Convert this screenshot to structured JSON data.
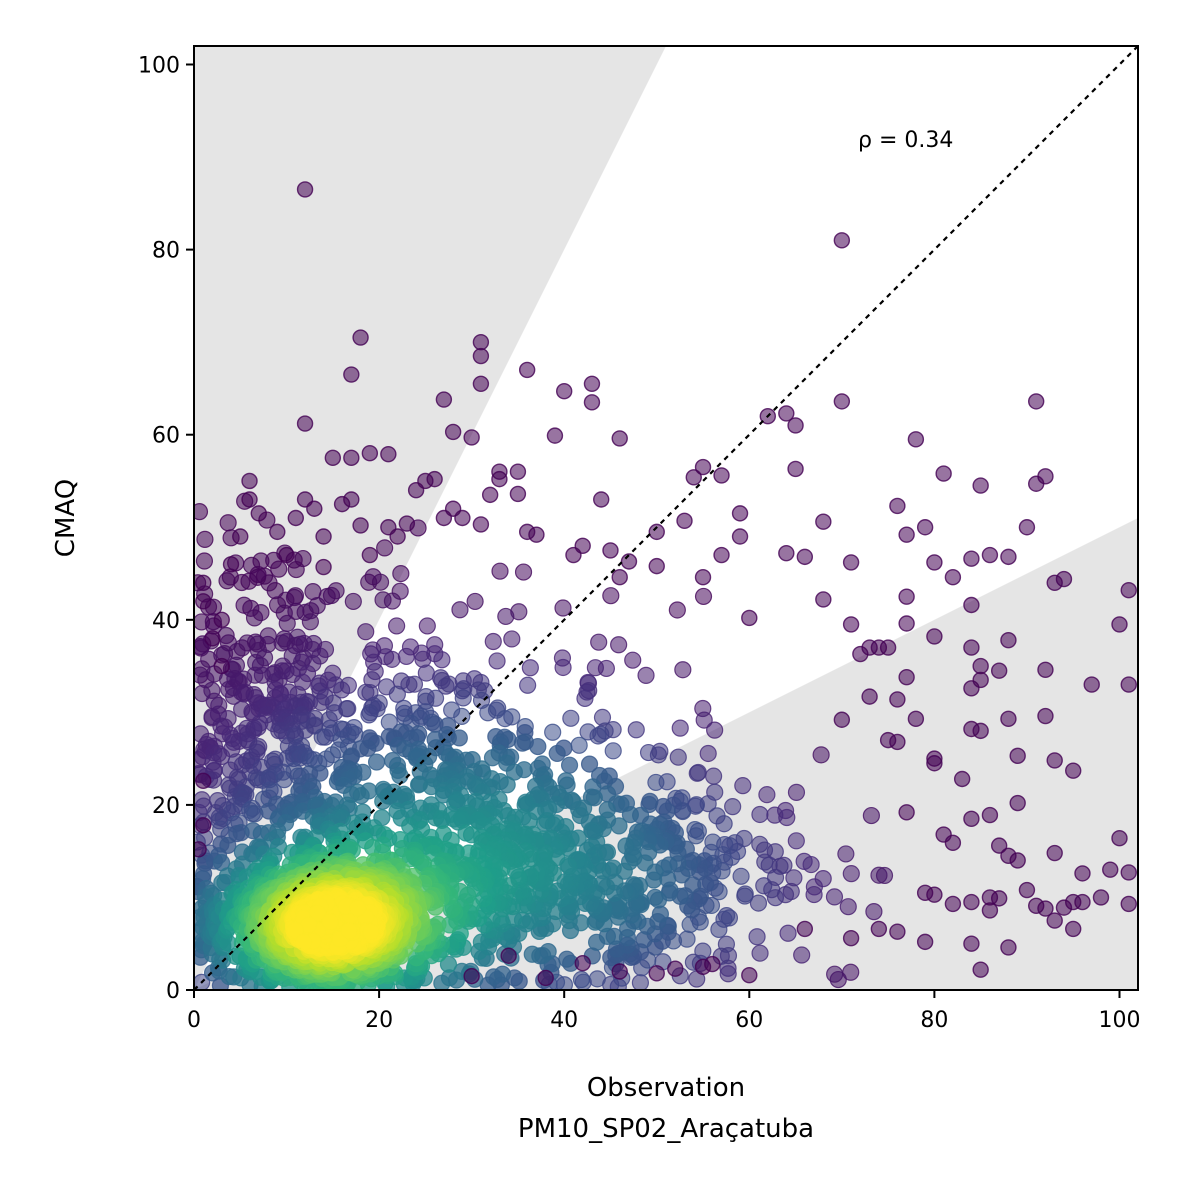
{
  "chart_data": {
    "type": "scatter",
    "title": "",
    "xlabel": "Observation",
    "xlabel_sub": "PM10_SP02_Araçatuba",
    "ylabel": "CMAQ",
    "xlim": [
      0,
      102
    ],
    "ylim": [
      0,
      102
    ],
    "xticks": [
      0,
      20,
      40,
      60,
      80,
      100
    ],
    "yticks": [
      0,
      20,
      40,
      60,
      80,
      100
    ],
    "grid": false,
    "annotation": "ρ = 0.34",
    "identity_line": true,
    "shaded_regions": [
      {
        "name": "upper",
        "bounds_slope": [
          2,
          null
        ]
      },
      {
        "name": "lower",
        "bounds_slope": [
          0,
          0.5
        ]
      }
    ],
    "colors": {
      "low_density": "#440154",
      "high_density": "#fde725",
      "shade": "#e5e5e5"
    },
    "outlier_points": [
      [
        12,
        86.5
      ],
      [
        70,
        81
      ],
      [
        18,
        70.5
      ],
      [
        31,
        70
      ],
      [
        31,
        68.5
      ],
      [
        17,
        66.5
      ],
      [
        36,
        67
      ],
      [
        31,
        65.5
      ],
      [
        43,
        65.5
      ],
      [
        40,
        64.7
      ],
      [
        27,
        63.8
      ],
      [
        43,
        63.5
      ],
      [
        70,
        63.6
      ],
      [
        91,
        63.6
      ],
      [
        62,
        62
      ],
      [
        64,
        62.3
      ],
      [
        12,
        61.2
      ],
      [
        28,
        60.3
      ],
      [
        30,
        59.7
      ],
      [
        46,
        59.6
      ],
      [
        39,
        59.9
      ],
      [
        78,
        59.5
      ],
      [
        65,
        61
      ],
      [
        19,
        58
      ],
      [
        15,
        57.5
      ],
      [
        17,
        57.5
      ],
      [
        21,
        57.9
      ],
      [
        33,
        56
      ],
      [
        35,
        56
      ],
      [
        57,
        55.6
      ],
      [
        55,
        56.5
      ],
      [
        65,
        56.3
      ],
      [
        76,
        52.3
      ],
      [
        81,
        55.8
      ],
      [
        92,
        55.5
      ],
      [
        85,
        54.5
      ],
      [
        91,
        54.7
      ],
      [
        44,
        53
      ],
      [
        54,
        55.4
      ],
      [
        68,
        50.6
      ],
      [
        79,
        50
      ],
      [
        90,
        50
      ],
      [
        50,
        49.5
      ],
      [
        77,
        49.2
      ],
      [
        71,
        46.2
      ],
      [
        80,
        46.2
      ],
      [
        84,
        46.6
      ],
      [
        86,
        47
      ],
      [
        88,
        46.8
      ],
      [
        93,
        44
      ],
      [
        94,
        44.4
      ],
      [
        68,
        42.2
      ],
      [
        77,
        42.5
      ],
      [
        82,
        44.6
      ],
      [
        84,
        41.6
      ],
      [
        60,
        40.2
      ],
      [
        71,
        39.5
      ],
      [
        77,
        39.6
      ],
      [
        80,
        38.2
      ],
      [
        88,
        37.8
      ],
      [
        73,
        37
      ],
      [
        74,
        37
      ],
      [
        75,
        37
      ],
      [
        72,
        36.3
      ],
      [
        84,
        37
      ],
      [
        85,
        35
      ],
      [
        87,
        34.5
      ],
      [
        92,
        34.6
      ],
      [
        77,
        33.8
      ],
      [
        97,
        33
      ],
      [
        101,
        33
      ],
      [
        100,
        39.5
      ],
      [
        101,
        43.2
      ],
      [
        73,
        31.7
      ],
      [
        76,
        31.4
      ],
      [
        84,
        32.6
      ],
      [
        85,
        33.5
      ],
      [
        88,
        29.3
      ],
      [
        92,
        29.6
      ],
      [
        70,
        29.2
      ],
      [
        78,
        29.3
      ],
      [
        75,
        27
      ],
      [
        76,
        26.8
      ],
      [
        84,
        28.2
      ],
      [
        85,
        28
      ],
      [
        89,
        25.3
      ],
      [
        93,
        24.8
      ],
      [
        95,
        23.7
      ],
      [
        80,
        25
      ],
      [
        80,
        24.5
      ],
      [
        83,
        22.8
      ],
      [
        89,
        20.2
      ],
      [
        100,
        16.4
      ],
      [
        77,
        19.2
      ],
      [
        84,
        18.5
      ],
      [
        86,
        18.9
      ],
      [
        81,
        16.8
      ],
      [
        82,
        15.9
      ],
      [
        87,
        15.6
      ],
      [
        88,
        14.5
      ],
      [
        89,
        14
      ],
      [
        93,
        14.8
      ],
      [
        96,
        12.6
      ],
      [
        99,
        13
      ],
      [
        101,
        12.7
      ],
      [
        95,
        9.5
      ],
      [
        98,
        10
      ],
      [
        101,
        9.3
      ],
      [
        96,
        9.5
      ],
      [
        94,
        8.9
      ],
      [
        92,
        8.8
      ],
      [
        91,
        9.1
      ],
      [
        84,
        9.5
      ],
      [
        86,
        10
      ],
      [
        87,
        9.9
      ],
      [
        80,
        10.3
      ],
      [
        82,
        9.3
      ],
      [
        79,
        10.5
      ],
      [
        90,
        10.8
      ],
      [
        95,
        6.6
      ],
      [
        93,
        7.5
      ],
      [
        85,
        2.2
      ],
      [
        79,
        5.2
      ],
      [
        84,
        5
      ],
      [
        86,
        8.6
      ],
      [
        88,
        4.6
      ],
      [
        60,
        1.6
      ],
      [
        55,
        2.5
      ],
      [
        46,
        2
      ],
      [
        42,
        2.9
      ],
      [
        38,
        1.3
      ],
      [
        34,
        3.7
      ],
      [
        50,
        1.8
      ],
      [
        52,
        2.3
      ],
      [
        56,
        2.8
      ],
      [
        66,
        6.6
      ],
      [
        74,
        6.6
      ],
      [
        71,
        5.6
      ],
      [
        76,
        6.3
      ],
      [
        30,
        1.5
      ],
      [
        1,
        44
      ],
      [
        1,
        42
      ],
      [
        2,
        38
      ],
      [
        3,
        40
      ],
      [
        1,
        22.6
      ],
      [
        1,
        17.8
      ],
      [
        0.5,
        15.2
      ],
      [
        3,
        35
      ],
      [
        4,
        46
      ],
      [
        5,
        49
      ],
      [
        6,
        53
      ],
      [
        6,
        55
      ],
      [
        7,
        51.5
      ],
      [
        9,
        49.5
      ],
      [
        10,
        47
      ],
      [
        11,
        51
      ],
      [
        12,
        53
      ],
      [
        13,
        52
      ],
      [
        14,
        49
      ],
      [
        14,
        45.7
      ],
      [
        16,
        52.5
      ],
      [
        17,
        53
      ],
      [
        18,
        50.2
      ],
      [
        19,
        47
      ],
      [
        21,
        50
      ],
      [
        22,
        49
      ],
      [
        23,
        50.4
      ],
      [
        24,
        54
      ],
      [
        25,
        55
      ],
      [
        26,
        55.2
      ],
      [
        27,
        51
      ],
      [
        28,
        52
      ],
      [
        29,
        51
      ],
      [
        31,
        50.3
      ],
      [
        32,
        53.5
      ],
      [
        33,
        55.2
      ],
      [
        35,
        53.6
      ],
      [
        36,
        49.5
      ],
      [
        37,
        49.2
      ],
      [
        41,
        47
      ],
      [
        42,
        48
      ],
      [
        45,
        47.5
      ],
      [
        46,
        44.6
      ],
      [
        47,
        46.3
      ],
      [
        50,
        45.8
      ],
      [
        53,
        50.7
      ],
      [
        55,
        44.6
      ],
      [
        59,
        49
      ],
      [
        64,
        47.2
      ],
      [
        66,
        46.8
      ],
      [
        59,
        51.5
      ],
      [
        57,
        47
      ]
    ]
  }
}
